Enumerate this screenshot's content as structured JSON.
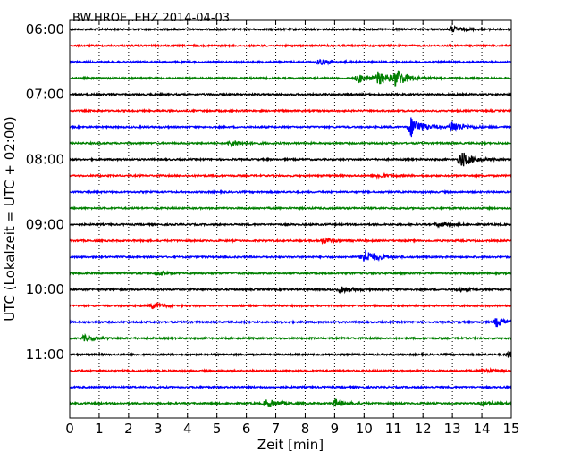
{
  "chart_data": {
    "type": "line",
    "title": "BW.HROE..EHZ 2014-04-03",
    "xlabel": "Zeit  [min]",
    "ylabel": "UTC (Lokalzeit = UTC + 02:00)",
    "xlim": [
      0,
      15
    ],
    "x_ticks": [
      0,
      1,
      2,
      3,
      4,
      5,
      6,
      7,
      8,
      9,
      10,
      11,
      12,
      13,
      14,
      15
    ],
    "x_tick_labels": [
      "0",
      "1",
      "2",
      "3",
      "4",
      "5",
      "6",
      "7",
      "8",
      "9",
      "10",
      "11",
      "12",
      "13",
      "14",
      "15"
    ],
    "y_tick_labels": [
      "06:00",
      "07:00",
      "08:00",
      "09:00",
      "10:00",
      "11:00"
    ],
    "y_tick_hours": [
      "06:00",
      "07:00",
      "08:00",
      "09:00",
      "10:00",
      "11:00"
    ],
    "grid_x": true,
    "grid_style": "dotted",
    "trace_colors": [
      "#000000",
      "#ff0000",
      "#0000ff",
      "#008000"
    ],
    "traces": [
      {
        "start": "06:00",
        "color": "#000000",
        "events": [
          {
            "t": 13,
            "amp": 3
          }
        ]
      },
      {
        "start": "06:15",
        "color": "#ff0000",
        "events": []
      },
      {
        "start": "06:30",
        "color": "#0000ff",
        "events": [
          {
            "t": 8.5,
            "amp": 3
          }
        ]
      },
      {
        "start": "06:45",
        "color": "#008000",
        "events": [
          {
            "t": 9.8,
            "amp": 5
          },
          {
            "t": 10.5,
            "amp": 7
          },
          {
            "t": 11.1,
            "amp": 9
          }
        ]
      },
      {
        "start": "07:00",
        "color": "#000000",
        "events": []
      },
      {
        "start": "07:15",
        "color": "#ff0000",
        "events": []
      },
      {
        "start": "07:30",
        "color": "#0000ff",
        "events": [
          {
            "t": 11.6,
            "amp": 11
          },
          {
            "t": 13.0,
            "amp": 6
          }
        ]
      },
      {
        "start": "07:45",
        "color": "#008000",
        "events": [
          {
            "t": 5.5,
            "amp": 3
          }
        ]
      },
      {
        "start": "08:00",
        "color": "#000000",
        "events": [
          {
            "t": 13.3,
            "amp": 9
          }
        ]
      },
      {
        "start": "08:15",
        "color": "#ff0000",
        "events": [
          {
            "t": 10.5,
            "amp": 2
          }
        ]
      },
      {
        "start": "08:30",
        "color": "#0000ff",
        "events": []
      },
      {
        "start": "08:45",
        "color": "#008000",
        "events": []
      },
      {
        "start": "09:00",
        "color": "#000000",
        "events": [
          {
            "t": 12.5,
            "amp": 2
          }
        ]
      },
      {
        "start": "09:15",
        "color": "#ff0000",
        "events": [
          {
            "t": 8.6,
            "amp": 3
          }
        ]
      },
      {
        "start": "09:30",
        "color": "#0000ff",
        "events": [
          {
            "t": 10.0,
            "amp": 9
          }
        ]
      },
      {
        "start": "09:45",
        "color": "#008000",
        "events": [
          {
            "t": 3.0,
            "amp": 2
          }
        ]
      },
      {
        "start": "10:00",
        "color": "#000000",
        "events": [
          {
            "t": 9.2,
            "amp": 3
          },
          {
            "t": 13.2,
            "amp": 2
          }
        ]
      },
      {
        "start": "10:15",
        "color": "#ff0000",
        "events": [
          {
            "t": 2.8,
            "amp": 3
          }
        ]
      },
      {
        "start": "10:30",
        "color": "#0000ff",
        "events": [
          {
            "t": 14.5,
            "amp": 5
          }
        ]
      },
      {
        "start": "10:45",
        "color": "#008000",
        "events": [
          {
            "t": 0.5,
            "amp": 3
          }
        ]
      },
      {
        "start": "11:00",
        "color": "#000000",
        "events": [
          {
            "t": 14.9,
            "amp": 3
          }
        ]
      },
      {
        "start": "11:15",
        "color": "#ff0000",
        "events": [
          {
            "t": 14.1,
            "amp": 2
          }
        ]
      },
      {
        "start": "11:30",
        "color": "#0000ff",
        "events": []
      },
      {
        "start": "11:45",
        "color": "#008000",
        "events": [
          {
            "t": 6.7,
            "amp": 5
          },
          {
            "t": 9.0,
            "amp": 4
          },
          {
            "t": 14.0,
            "amp": 2
          }
        ]
      }
    ]
  }
}
